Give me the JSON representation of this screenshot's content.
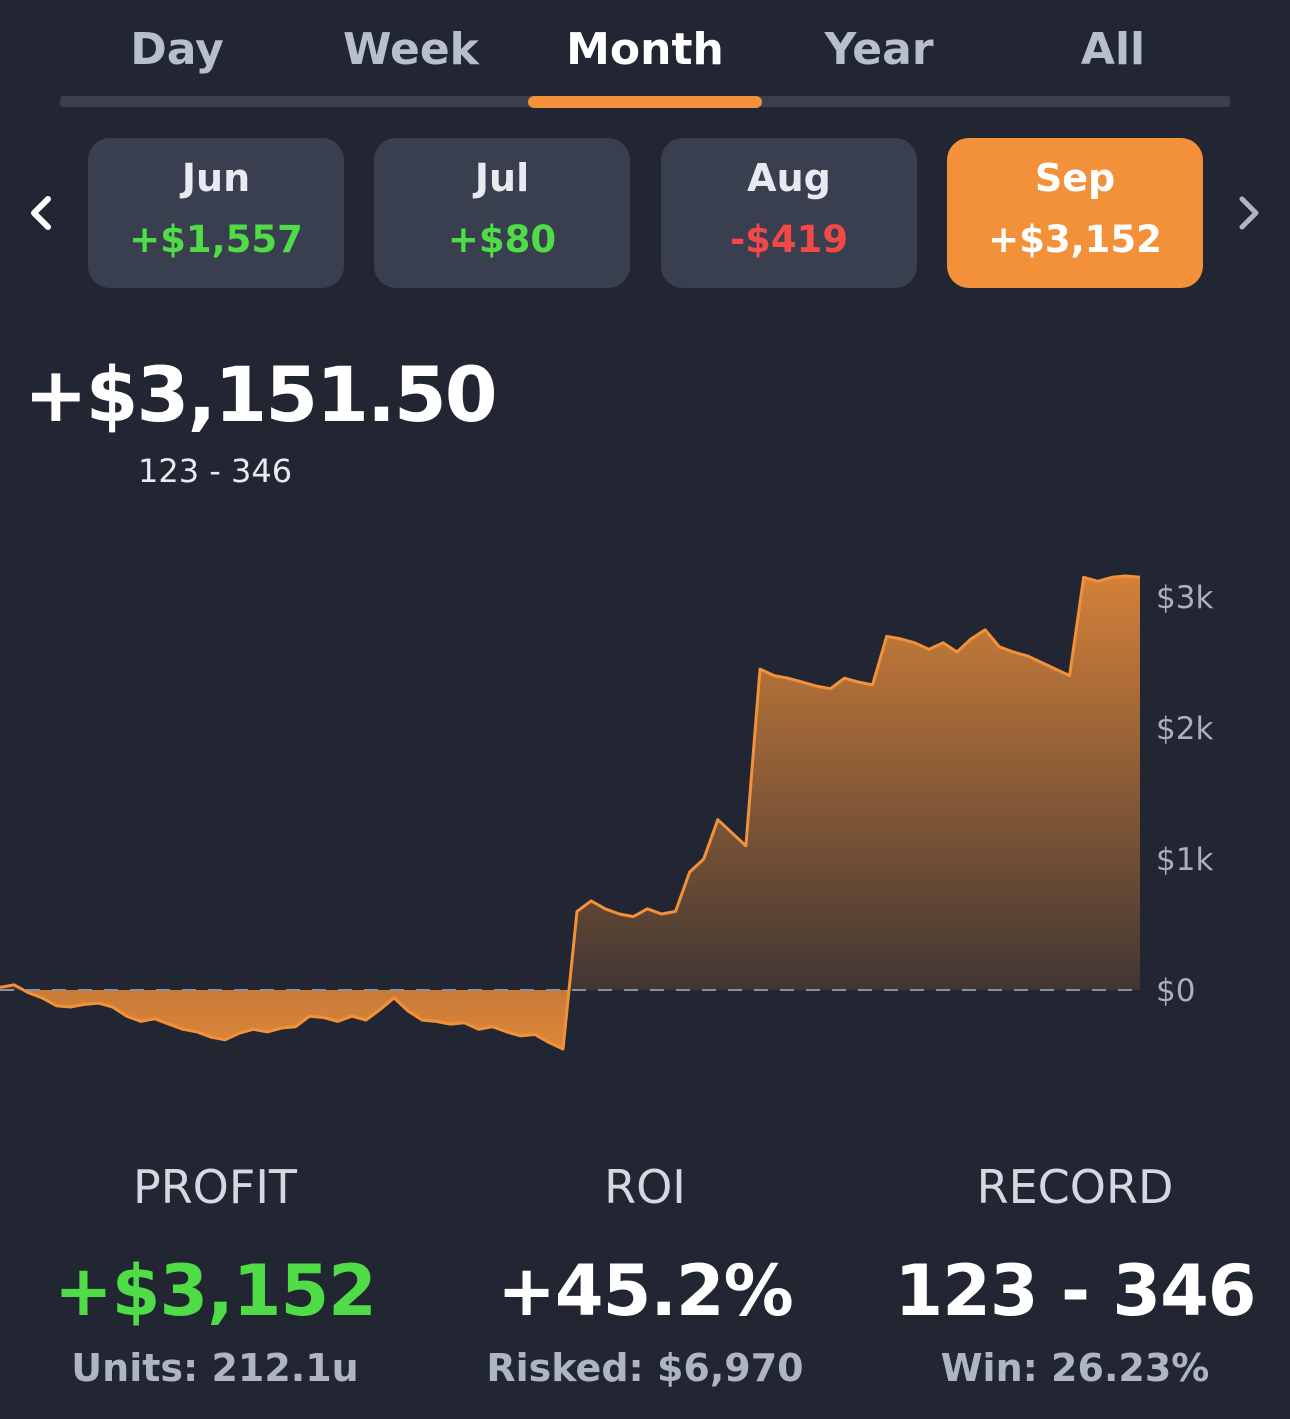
{
  "tabs": [
    {
      "label": "Day",
      "active": false
    },
    {
      "label": "Week",
      "active": false
    },
    {
      "label": "Month",
      "active": true
    },
    {
      "label": "Year",
      "active": false
    },
    {
      "label": "All",
      "active": false
    }
  ],
  "months": [
    {
      "label": "Jun",
      "value": "+$1,557",
      "sign": "pos",
      "selected": false
    },
    {
      "label": "Jul",
      "value": "+$80",
      "sign": "pos",
      "selected": false
    },
    {
      "label": "Aug",
      "value": "-$419",
      "sign": "neg",
      "selected": false
    },
    {
      "label": "Sep",
      "value": "+$3,152",
      "sign": "pos",
      "selected": true
    }
  ],
  "nav": {
    "prev_icon": "chevron-left-icon",
    "next_icon": "chevron-right-icon"
  },
  "summary": {
    "total": "+$3,151.50",
    "record": "123 - 346"
  },
  "colors": {
    "accent": "#f2913a",
    "positive": "#4fdc47",
    "negative": "#f24848",
    "background": "#222632"
  },
  "chart_data": {
    "type": "area",
    "title": "",
    "xlabel": "",
    "ylabel": "",
    "y_ticks": [
      "$3k",
      "$2k",
      "$1k",
      "$0"
    ],
    "y_tick_values": [
      3000,
      2000,
      1000,
      0
    ],
    "ylim": [
      -450,
      3200
    ],
    "zero_line": "dashed",
    "values": [
      20,
      40,
      -20,
      -60,
      -120,
      -130,
      -110,
      -100,
      -130,
      -200,
      -240,
      -220,
      -260,
      -300,
      -320,
      -360,
      -380,
      -330,
      -300,
      -320,
      -290,
      -280,
      -200,
      -210,
      -240,
      -200,
      -230,
      -150,
      -60,
      -160,
      -230,
      -240,
      -260,
      -250,
      -300,
      -280,
      -320,
      -350,
      -340,
      -400,
      -450,
      600,
      680,
      620,
      580,
      560,
      620,
      580,
      600,
      900,
      1000,
      1300,
      1200,
      1100,
      2450,
      2400,
      2380,
      2350,
      2320,
      2300,
      2380,
      2350,
      2330,
      2700,
      2680,
      2650,
      2600,
      2650,
      2580,
      2680,
      2750,
      2620,
      2580,
      2550,
      2500,
      2450,
      2400,
      3150,
      3120,
      3150,
      3160,
      3150
    ]
  },
  "stats": {
    "profit": {
      "label": "PROFIT",
      "value": "+$3,152",
      "sub": "Units: 212.1u"
    },
    "roi": {
      "label": "ROI",
      "value": "+45.2%",
      "sub": "Risked: $6,970"
    },
    "record": {
      "label": "RECORD",
      "value": "123 - 346",
      "sub": "Win: 26.23%"
    }
  }
}
